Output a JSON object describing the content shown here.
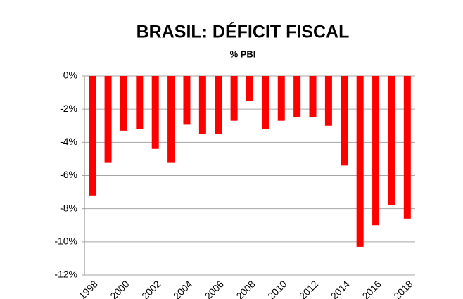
{
  "chart_data": {
    "type": "bar",
    "title": "BRASIL: DÉFICIT FISCAL",
    "subtitle": "% PBI",
    "categories": [
      "1998",
      null,
      "2000",
      null,
      "2002",
      null,
      "2004",
      null,
      "2006",
      null,
      "2008",
      null,
      "2010",
      null,
      "2012",
      null,
      "2014",
      null,
      "2016",
      null,
      "2018"
    ],
    "values": [
      -7.2,
      -5.2,
      -3.3,
      -3.2,
      -4.4,
      -5.2,
      -2.9,
      -3.5,
      -3.5,
      -2.7,
      -1.5,
      -3.2,
      -2.7,
      -2.5,
      -2.5,
      -3.0,
      -5.4,
      -10.3,
      -9.0,
      -7.8,
      -8.6
    ],
    "color": "#ff0000",
    "ylim": [
      -12,
      0
    ],
    "yticks": [
      {
        "value": -12,
        "label": "-12%"
      },
      {
        "value": -10,
        "label": "-10%"
      },
      {
        "value": -8,
        "label": "-8%"
      },
      {
        "value": -6,
        "label": "-6%"
      },
      {
        "value": -4,
        "label": "-4%"
      },
      {
        "value": -2,
        "label": "-2%"
      },
      {
        "value": 0,
        "label": "0%"
      }
    ],
    "grid": true
  }
}
